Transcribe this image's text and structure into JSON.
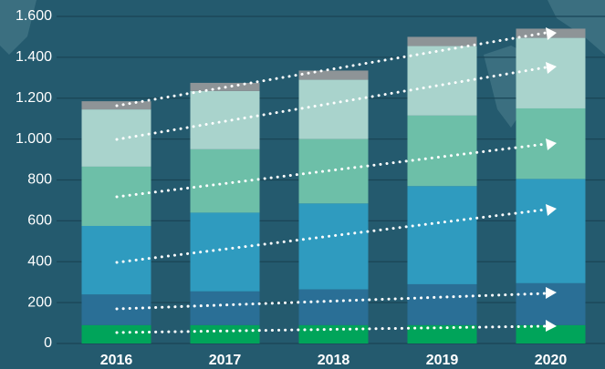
{
  "chart_data": {
    "type": "stacked_bar",
    "categories": [
      "2016",
      "2017",
      "2018",
      "2019",
      "2020"
    ],
    "series": [
      {
        "color": "#00a45a",
        "values": [
          90,
          90,
          90,
          90,
          90
        ]
      },
      {
        "color": "#2a6f96",
        "values": [
          150,
          165,
          175,
          200,
          205
        ]
      },
      {
        "color": "#2f9bbf",
        "values": [
          335,
          385,
          420,
          480,
          510
        ]
      },
      {
        "color": "#6dbfa8",
        "values": [
          290,
          310,
          315,
          345,
          345
        ]
      },
      {
        "color": "#a9d3cc",
        "values": [
          280,
          285,
          290,
          340,
          345
        ]
      },
      {
        "color": "#8e9497",
        "values": [
          40,
          40,
          45,
          45,
          45
        ]
      }
    ],
    "ylim": [
      0,
      1600
    ],
    "yticks": [
      0,
      200,
      400,
      600,
      800,
      {
        "value": 1000,
        "label": "1.000"
      },
      {
        "value": 1200,
        "label": "1.200"
      },
      {
        "value": 1400,
        "label": "1.400"
      },
      {
        "value": 1600,
        "label": "1.600"
      }
    ],
    "grid": true
  }
}
